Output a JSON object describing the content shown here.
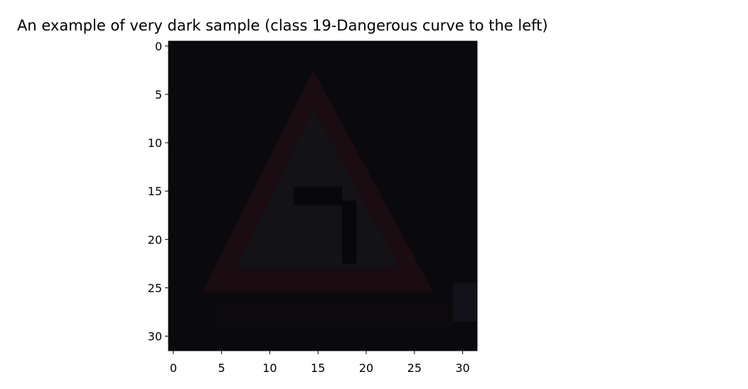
{
  "chart_data": {
    "type": "image",
    "title": "An example of very dark sample (class 19-Dangerous curve to the left)",
    "xlabel": "",
    "ylabel": "",
    "xlim": [
      -0.5,
      31.5
    ],
    "ylim": [
      31.5,
      -0.5
    ],
    "x_ticks": [
      0,
      5,
      10,
      15,
      20,
      25,
      30
    ],
    "y_ticks": [
      0,
      5,
      10,
      15,
      20,
      25,
      30
    ],
    "x_tick_labels": [
      "0",
      "5",
      "10",
      "15",
      "20",
      "25",
      "30"
    ],
    "y_tick_labels": [
      "0",
      "5",
      "10",
      "15",
      "20",
      "25",
      "30"
    ],
    "image_size": [
      32,
      32
    ],
    "grid": false,
    "colors": {
      "background": "#0a090d",
      "sign_border": "#1a0c10",
      "sign_inner": "#121217",
      "symbol": "#08080b"
    }
  }
}
